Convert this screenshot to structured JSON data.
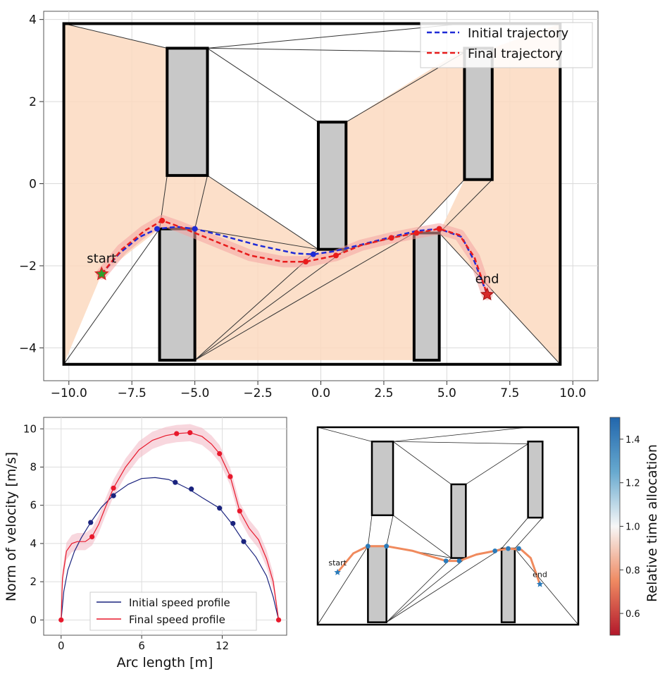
{
  "chart_data": [
    {
      "type": "line",
      "panel": "trajectory-map",
      "title": "",
      "xlabel": "",
      "ylabel": "",
      "xlim": [
        -11,
        11
      ],
      "ylim": [
        -4.8,
        4.2
      ],
      "grid": true,
      "legend_position": "top-right",
      "x_ticks": [
        "−10.0",
        "−7.5",
        "−5.0",
        "−2.5",
        "0.0",
        "2.5",
        "5.0",
        "7.5",
        "10.0"
      ],
      "x_tick_values": [
        -10,
        -7.5,
        -5,
        -2.5,
        0,
        2.5,
        5,
        7.5,
        10
      ],
      "y_ticks": [
        "4",
        "2",
        "0",
        "−2",
        "−4"
      ],
      "y_tick_values": [
        4,
        2,
        0,
        -2,
        -4
      ],
      "boundary": [
        [
          -10.2,
          3.9
        ],
        [
          9.5,
          3.9
        ],
        [
          9.5,
          -4.4
        ],
        [
          -10.2,
          -4.4
        ]
      ],
      "obstacles": [
        {
          "x0": -6.1,
          "x1": -4.5,
          "y0": 0.2,
          "y1": 3.3
        },
        {
          "x0": -0.1,
          "x1": 1.0,
          "y0": -1.6,
          "y1": 1.5
        },
        {
          "x0": 5.7,
          "x1": 6.8,
          "y0": 0.1,
          "y1": 3.3
        },
        {
          "x0": -6.4,
          "x1": -5.0,
          "y0": -4.3,
          "y1": -1.1
        },
        {
          "x0": 3.7,
          "x1": 4.7,
          "y0": -4.3,
          "y1": -1.2
        }
      ],
      "free_regions": [
        [
          [
            -10.2,
            3.9
          ],
          [
            -6.1,
            3.3
          ],
          [
            -6.1,
            0.2
          ],
          [
            -6.4,
            -1.1
          ],
          [
            -8.7,
            -2.2
          ],
          [
            -10.2,
            -4.4
          ]
        ],
        [
          [
            -6.1,
            0.2
          ],
          [
            -4.5,
            0.2
          ],
          [
            -0.1,
            -1.6
          ],
          [
            -5.0,
            -4.3
          ],
          [
            -5.0,
            -1.1
          ],
          [
            -6.4,
            -1.1
          ]
        ],
        [
          [
            1.0,
            1.5
          ],
          [
            5.7,
            3.3
          ],
          [
            5.7,
            0.1
          ],
          [
            3.7,
            -1.2
          ],
          [
            1.0,
            -1.6
          ]
        ],
        [
          [
            6.8,
            0.1
          ],
          [
            6.8,
            3.3
          ],
          [
            9.5,
            3.9
          ],
          [
            9.5,
            -4.4
          ],
          [
            4.7,
            -1.2
          ],
          [
            5.7,
            0.1
          ]
        ],
        [
          [
            -0.1,
            -1.6
          ],
          [
            1.0,
            -1.6
          ],
          [
            3.7,
            -1.2
          ],
          [
            3.7,
            -4.3
          ],
          [
            -5.0,
            -4.3
          ]
        ]
      ],
      "graph_edges": [
        [
          [
            -10.2,
            3.9
          ],
          [
            -6.1,
            3.3
          ]
        ],
        [
          [
            -4.5,
            3.3
          ],
          [
            5.7,
            3.9
          ]
        ],
        [
          [
            -4.5,
            3.3
          ],
          [
            5.7,
            3.2
          ]
        ],
        [
          [
            -4.5,
            3.3
          ],
          [
            -0.1,
            1.5
          ]
        ],
        [
          [
            1.0,
            1.5
          ],
          [
            5.7,
            3.2
          ]
        ],
        [
          [
            -6.1,
            0.2
          ],
          [
            -6.4,
            -1.1
          ]
        ],
        [
          [
            -4.5,
            0.2
          ],
          [
            -5.0,
            -1.1
          ]
        ],
        [
          [
            -4.5,
            0.2
          ],
          [
            -0.1,
            -1.6
          ]
        ],
        [
          [
            -5.0,
            -1.1
          ],
          [
            -0.1,
            -1.6
          ]
        ],
        [
          [
            -10.2,
            -4.4
          ],
          [
            -6.4,
            -1.1
          ]
        ],
        [
          [
            -5.0,
            -4.3
          ],
          [
            -0.1,
            -1.6
          ]
        ],
        [
          [
            -5.0,
            -4.3
          ],
          [
            1.0,
            -1.6
          ]
        ],
        [
          [
            -5.0,
            -4.3
          ],
          [
            3.7,
            -1.2
          ]
        ],
        [
          [
            1.0,
            -1.6
          ],
          [
            3.7,
            -1.2
          ]
        ],
        [
          [
            5.7,
            0.1
          ],
          [
            3.7,
            -1.2
          ]
        ],
        [
          [
            6.8,
            0.1
          ],
          [
            4.7,
            -1.2
          ]
        ],
        [
          [
            4.7,
            -1.2
          ],
          [
            9.5,
            -4.4
          ]
        ],
        [
          [
            -10.2,
            -4.4
          ],
          [
            9.5,
            -4.4
          ]
        ]
      ],
      "series": [
        {
          "name": "Initial trajectory",
          "color": "#1f2bd6",
          "style": "dashed",
          "x": [
            -8.7,
            -8.0,
            -7.2,
            -6.5,
            -5.7,
            -5.0,
            -4.0,
            -2.5,
            -1.0,
            -0.3,
            0.5,
            1.5,
            2.8,
            3.8,
            4.7,
            5.6,
            6.1,
            6.6
          ],
          "y": [
            -2.2,
            -1.7,
            -1.3,
            -1.1,
            -1.05,
            -1.1,
            -1.25,
            -1.5,
            -1.7,
            -1.72,
            -1.65,
            -1.5,
            -1.3,
            -1.15,
            -1.1,
            -1.3,
            -1.9,
            -2.7
          ],
          "waypoints_x": [
            -6.5,
            -5.0,
            -0.3,
            4.7
          ],
          "waypoints_y": [
            -1.1,
            -1.1,
            -1.72,
            -1.1
          ]
        },
        {
          "name": "Final trajectory",
          "color": "#e81c1c",
          "style": "dashed",
          "x": [
            -8.7,
            -7.9,
            -7.0,
            -6.3,
            -5.6,
            -5.0,
            -4.0,
            -2.8,
            -1.5,
            -0.6,
            0.6,
            1.6,
            2.8,
            3.8,
            4.7,
            5.5,
            6.1,
            6.6
          ],
          "y": [
            -2.2,
            -1.6,
            -1.15,
            -0.9,
            -1.05,
            -1.2,
            -1.45,
            -1.75,
            -1.9,
            -1.9,
            -1.75,
            -1.5,
            -1.32,
            -1.2,
            -1.1,
            -1.25,
            -1.8,
            -2.7
          ],
          "waypoints_x": [
            -6.3,
            -0.6,
            0.6,
            2.8,
            3.8,
            4.7
          ],
          "waypoints_y": [
            -0.9,
            -1.9,
            -1.75,
            -1.32,
            -1.2,
            -1.1
          ]
        }
      ],
      "start": {
        "label": "start",
        "x": -8.7,
        "y": -2.2
      },
      "end": {
        "label": "end",
        "x": 6.6,
        "y": -2.7
      }
    },
    {
      "type": "line",
      "panel": "speed-profile",
      "title": "",
      "xlabel": "Arc length [m]",
      "ylabel": "Norm of velocity [m/s]",
      "xlim": [
        -1.3,
        16.8
      ],
      "ylim": [
        -0.8,
        10.6
      ],
      "grid": true,
      "legend_position": "lower-center",
      "x_ticks": [
        "0",
        "6",
        "12"
      ],
      "x_tick_values": [
        0,
        6,
        12
      ],
      "y_ticks": [
        "0",
        "2",
        "4",
        "6",
        "8",
        "10"
      ],
      "y_tick_values": [
        0,
        2,
        4,
        6,
        8,
        10
      ],
      "series": [
        {
          "name": "Initial speed profile",
          "color": "#1a237e",
          "x": [
            0,
            0.2,
            0.5,
            1.0,
            1.5,
            2.2,
            3.0,
            4.0,
            5.0,
            6.0,
            7.0,
            8.0,
            8.5,
            9.5,
            10.5,
            11.8,
            12.7,
            13.6,
            14.5,
            15.3,
            15.8,
            16.2
          ],
          "y": [
            0,
            1.5,
            2.6,
            3.6,
            4.3,
            5.1,
            5.9,
            6.6,
            7.1,
            7.4,
            7.45,
            7.35,
            7.2,
            6.85,
            6.4,
            5.85,
            5.05,
            4.1,
            3.3,
            2.3,
            1.2,
            0
          ],
          "markers_x": [
            2.2,
            3.9,
            8.5,
            9.7,
            11.8,
            12.8,
            13.6
          ],
          "markers_y": [
            5.1,
            6.5,
            7.2,
            6.85,
            5.85,
            5.05,
            4.1
          ]
        },
        {
          "name": "Final speed profile",
          "color": "#e8192c",
          "x": [
            0,
            0.1,
            0.4,
            0.8,
            1.2,
            1.8,
            2.3,
            2.8,
            3.3,
            3.9,
            4.8,
            5.8,
            6.8,
            7.8,
            8.6,
            9.6,
            10.5,
            11.2,
            11.8,
            12.6,
            13.3,
            14.0,
            14.7,
            15.3,
            15.8,
            16.2
          ],
          "y": [
            0,
            2.2,
            3.6,
            4.0,
            4.1,
            4.1,
            4.35,
            5.0,
            5.9,
            6.9,
            8.0,
            8.9,
            9.4,
            9.65,
            9.75,
            9.8,
            9.6,
            9.2,
            8.7,
            7.5,
            5.7,
            4.8,
            4.2,
            3.2,
            2.0,
            0
          ],
          "markers_x": [
            0,
            2.3,
            3.9,
            8.6,
            9.6,
            11.8,
            12.6,
            13.3,
            16.2
          ],
          "markers_y": [
            0,
            4.35,
            6.9,
            9.75,
            9.8,
            8.7,
            7.5,
            5.7,
            0
          ]
        }
      ]
    },
    {
      "type": "line",
      "panel": "time-allocation-map",
      "title": "",
      "xlabel": "",
      "ylabel": "",
      "grid": false,
      "path_color": "#f08a5d",
      "path_points": [
        [
          -8.7,
          -2.2
        ],
        [
          -7.5,
          -1.4
        ],
        [
          -6.4,
          -1.1
        ],
        [
          -5.0,
          -1.1
        ],
        [
          -3.0,
          -1.3
        ],
        [
          -0.5,
          -1.72
        ],
        [
          0.5,
          -1.72
        ],
        [
          1.8,
          -1.45
        ],
        [
          3.2,
          -1.3
        ],
        [
          4.2,
          -1.2
        ],
        [
          5.2,
          -1.25
        ],
        [
          5.9,
          -1.6
        ],
        [
          6.6,
          -2.7
        ]
      ],
      "waypoints": [
        [
          -6.4,
          -1.1
        ],
        [
          -5.0,
          -1.1
        ],
        [
          -0.5,
          -1.72
        ],
        [
          0.5,
          -1.72
        ],
        [
          3.2,
          -1.3
        ],
        [
          4.2,
          -1.2
        ],
        [
          5.0,
          -1.2
        ]
      ],
      "start": {
        "label": "start",
        "x": -8.7,
        "y": -2.2
      },
      "end": {
        "label": "end",
        "x": 6.6,
        "y": -2.7
      },
      "colorbar": {
        "label": "Relative time allocation",
        "min": 0.5,
        "max": 1.5,
        "ticks": [
          "0.6",
          "0.8",
          "1.0",
          "1.2",
          "1.4"
        ],
        "tick_values": [
          0.6,
          0.8,
          1.0,
          1.2,
          1.4
        ],
        "colors": [
          "#b2182b",
          "#ef8a62",
          "#f7f7f7",
          "#67a9cf",
          "#2166ac"
        ]
      }
    }
  ]
}
